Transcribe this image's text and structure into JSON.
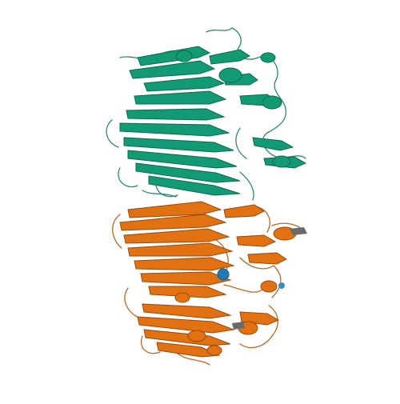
{
  "scene": {
    "background_color": "#ffffff",
    "subject": "protein-ribbon-structure",
    "chains": [
      {
        "name": "chain-a",
        "color": "#129a74",
        "shadow_color": "#0a6b4f",
        "position": "upper"
      },
      {
        "name": "chain-b",
        "color": "#e27112",
        "shadow_color": "#9a4a0a",
        "position": "lower"
      }
    ],
    "ligand": {
      "color": "#1f7bb5",
      "position": "center-lower"
    }
  }
}
